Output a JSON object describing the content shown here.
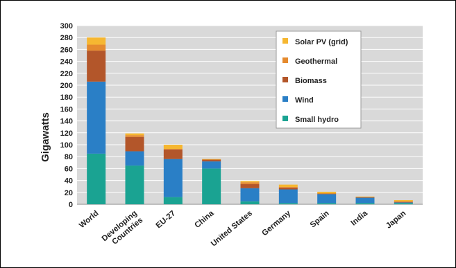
{
  "chart_data": {
    "type": "bar",
    "stacked": true,
    "ylabel": "Gigawatts",
    "ylim": [
      0,
      300
    ],
    "ytick_step": 20,
    "grid": true,
    "legend_position": "top-right",
    "categories": [
      "World",
      "Developing Countries",
      "EU-27",
      "China",
      "United States",
      "Germany",
      "Spain",
      "India",
      "Japan"
    ],
    "category_lines": [
      [
        "World"
      ],
      [
        "Developing",
        "Countries"
      ],
      [
        "EU-27"
      ],
      [
        "China"
      ],
      [
        "United States"
      ],
      [
        "Germany"
      ],
      [
        "Spain"
      ],
      [
        "India"
      ],
      [
        "Japan"
      ]
    ],
    "series": [
      {
        "name": "Small hydro",
        "color": "#1aa392",
        "values": [
          85,
          65,
          12,
          60,
          5,
          2,
          2,
          2,
          2
        ]
      },
      {
        "name": "Wind",
        "color": "#2a7fc6",
        "values": [
          121,
          24,
          64,
          12,
          22,
          23,
          15,
          9,
          1
        ]
      },
      {
        "name": "Biomass",
        "color": "#b3562a",
        "values": [
          52,
          24,
          16,
          3,
          7,
          3,
          1,
          1,
          1
        ]
      },
      {
        "name": "Geothermal",
        "color": "#e58a2e",
        "values": [
          10,
          3,
          1,
          0,
          3,
          1,
          0,
          0,
          1
        ]
      },
      {
        "name": "Solar PV (grid)",
        "color": "#f6b731",
        "values": [
          12,
          3,
          7,
          1,
          2,
          4,
          3,
          1,
          2
        ]
      }
    ],
    "legend_order": [
      "Solar PV (grid)",
      "Geothermal",
      "Biomass",
      "Wind",
      "Small hydro"
    ]
  }
}
